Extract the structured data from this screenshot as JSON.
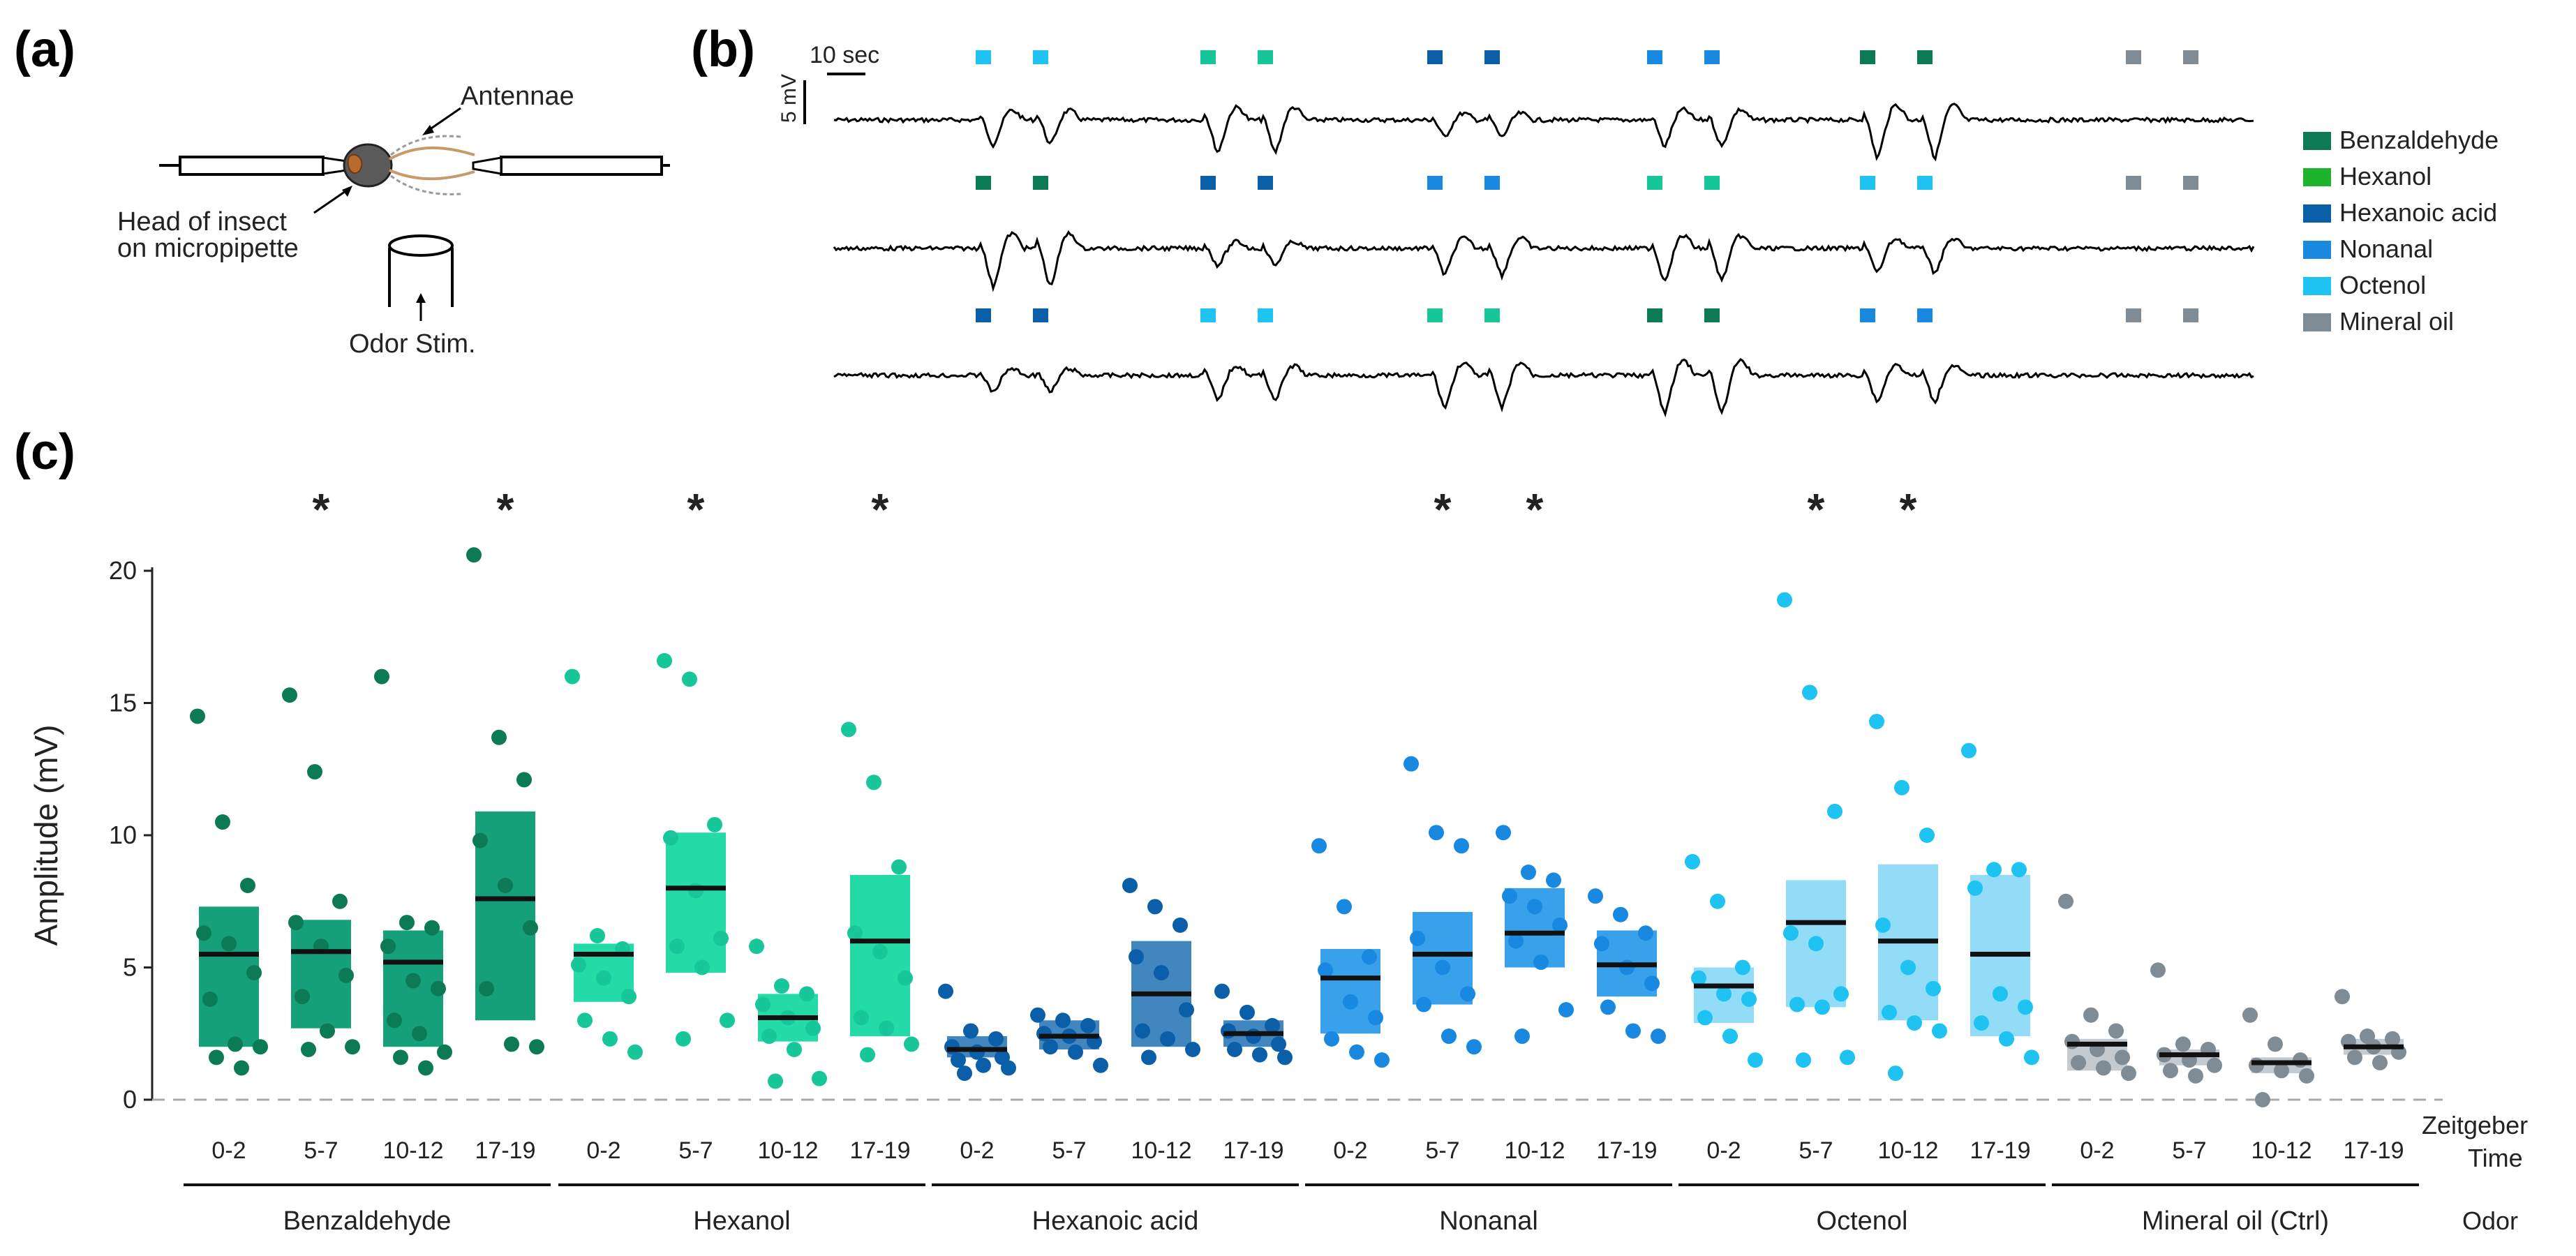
{
  "panels": {
    "a": {
      "letter": "(a)",
      "antennae_label": "Antennae",
      "head_label_line1": "Head of insect",
      "head_label_line2": "on micropipette",
      "odor_label": "Odor Stim."
    },
    "b": {
      "letter": "(b)",
      "time_scale": "10 sec",
      "voltage_scale": "5 mV",
      "legend": [
        {
          "name": "Benzaldehyde",
          "color": "#0b7a55"
        },
        {
          "name": "Hexanol",
          "color": "#1db32d"
        },
        {
          "name": "Hexanoic acid",
          "color": "#0b5fa8"
        },
        {
          "name": "Nonanal",
          "color": "#1888e0"
        },
        {
          "name": "Octenol",
          "color": "#1ec3f2"
        },
        {
          "name": "Mineral oil",
          "color": "#7f8c96"
        }
      ],
      "stimulus_rows": [
        [
          "Octenol",
          "Hexanol",
          "Hexanoic acid",
          "Nonanal",
          "Benzaldehyde",
          "Mineral oil"
        ],
        [
          "Benzaldehyde",
          "Hexanoic acid",
          "Nonanal",
          "Hexanol",
          "Octenol",
          "Mineral oil"
        ],
        [
          "Hexanoic acid",
          "Octenol",
          "Hexanol",
          "Benzaldehyde",
          "Nonanal",
          "Mineral oil"
        ]
      ],
      "stimulus_colors": {
        "Benzaldehyde": "#0b7a55",
        "Hexanol": "#17c79a",
        "Hexanoic acid": "#0b5fa8",
        "Nonanal": "#1888e0",
        "Octenol": "#1ec3f2",
        "Mineral oil": "#7f8c96"
      },
      "response_scale": {
        "Benzaldehyde": 1.0,
        "Hexanol": 0.85,
        "Hexanoic acid": 0.45,
        "Nonanal": 0.7,
        "Octenol": 0.65,
        "Mineral oil": 0.0
      }
    },
    "c": {
      "letter": "(c)"
    }
  },
  "chart_data": {
    "type": "scatter",
    "title": "",
    "ylabel": "Amplitude (mV)",
    "ylim": [
      0,
      20
    ],
    "yticks": [
      0,
      5,
      10,
      15,
      20
    ],
    "xlabel_time": "Zeitgeber",
    "xlabel_time_2": "Time",
    "xlabel_odor": "Odor",
    "time_labels": [
      "0-2",
      "5-7",
      "10-12",
      "17-19"
    ],
    "groups": [
      {
        "odor": "Benzaldehyde",
        "color": "#0b7a55",
        "bar_color": "#15a07a",
        "bar_opacity": 1.0,
        "significant": [
          false,
          true,
          false,
          true
        ],
        "medians": [
          5.5,
          5.6,
          5.2,
          7.6
        ],
        "boxes": [
          [
            2.0,
            7.3
          ],
          [
            2.7,
            6.8
          ],
          [
            2.0,
            6.4
          ],
          [
            3.0,
            10.9
          ]
        ],
        "points": [
          [
            14.5,
            10.5,
            8.1,
            6.3,
            5.9,
            4.8,
            3.8,
            2.1,
            2.0,
            1.6,
            1.2
          ],
          [
            15.3,
            12.4,
            7.5,
            6.7,
            5.8,
            4.7,
            3.9,
            2.6,
            2.0,
            1.9
          ],
          [
            16.0,
            6.7,
            6.5,
            5.8,
            4.5,
            4.2,
            3.0,
            2.5,
            1.8,
            1.6,
            1.2
          ],
          [
            20.6,
            13.7,
            12.1,
            9.8,
            8.1,
            6.5,
            4.2,
            2.1,
            2.0
          ]
        ]
      },
      {
        "odor": "Hexanol",
        "color": "#17c79a",
        "bar_color": "#24dba8",
        "bar_opacity": 1.0,
        "significant": [
          false,
          true,
          false,
          true
        ],
        "medians": [
          5.5,
          8.0,
          3.1,
          6.0
        ],
        "boxes": [
          [
            3.7,
            5.9
          ],
          [
            4.8,
            10.1
          ],
          [
            2.2,
            4.0
          ],
          [
            2.4,
            8.5
          ]
        ],
        "points": [
          [
            16.0,
            6.2,
            5.7,
            5.1,
            4.6,
            3.9,
            3.0,
            2.3,
            1.8
          ],
          [
            16.6,
            15.9,
            10.4,
            9.9,
            7.9,
            6.1,
            5.8,
            5.0,
            3.0,
            2.3
          ],
          [
            5.8,
            4.3,
            4.0,
            3.6,
            3.1,
            2.7,
            2.4,
            1.9,
            0.8,
            0.7
          ],
          [
            14.0,
            12.0,
            8.8,
            6.3,
            5.6,
            4.6,
            3.1,
            2.7,
            2.1,
            1.7
          ]
        ]
      },
      {
        "odor": "Hexanoic acid",
        "color": "#0b5fa8",
        "bar_color": "#2e79b8",
        "bar_opacity": 0.9,
        "significant": [
          false,
          false,
          false,
          false
        ],
        "medians": [
          1.9,
          2.4,
          4.0,
          2.5
        ],
        "boxes": [
          [
            1.6,
            2.4
          ],
          [
            1.9,
            3.0
          ],
          [
            2.0,
            6.0
          ],
          [
            2.0,
            3.0
          ]
        ],
        "points": [
          [
            4.1,
            2.6,
            2.3,
            2.0,
            1.8,
            1.6,
            1.5,
            1.3,
            1.2,
            1.0
          ],
          [
            3.2,
            3.0,
            2.8,
            2.5,
            2.4,
            2.2,
            2.0,
            1.8,
            1.3
          ],
          [
            8.1,
            7.3,
            6.6,
            5.4,
            4.8,
            3.4,
            2.6,
            2.3,
            1.9,
            1.6
          ],
          [
            4.1,
            3.3,
            2.8,
            2.6,
            2.4,
            2.1,
            1.9,
            1.7,
            1.6
          ]
        ]
      },
      {
        "odor": "Nonanal",
        "color": "#1888e0",
        "bar_color": "#2e9bea",
        "bar_opacity": 0.95,
        "significant": [
          false,
          true,
          true,
          false
        ],
        "medians": [
          4.6,
          5.5,
          6.3,
          5.1
        ],
        "boxes": [
          [
            2.5,
            5.7
          ],
          [
            3.6,
            7.1
          ],
          [
            5.0,
            8.0
          ],
          [
            3.9,
            6.4
          ]
        ],
        "points": [
          [
            9.6,
            7.3,
            5.4,
            4.9,
            3.7,
            3.1,
            2.3,
            1.8,
            1.5
          ],
          [
            12.7,
            10.1,
            9.6,
            6.1,
            5.0,
            4.0,
            3.6,
            2.4,
            2.0
          ],
          [
            10.1,
            8.6,
            8.3,
            7.7,
            7.3,
            6.6,
            6.0,
            5.2,
            3.4,
            2.4
          ],
          [
            7.7,
            7.0,
            6.3,
            5.9,
            5.0,
            4.4,
            3.5,
            2.6,
            2.4
          ]
        ]
      },
      {
        "odor": "Octenol",
        "color": "#1ec3f2",
        "bar_color": "#7fd6f7",
        "bar_opacity": 0.85,
        "significant": [
          false,
          true,
          true,
          false
        ],
        "medians": [
          4.3,
          6.7,
          6.0,
          5.5
        ],
        "boxes": [
          [
            2.9,
            5.0
          ],
          [
            3.5,
            8.3
          ],
          [
            3.0,
            8.9
          ],
          [
            2.4,
            8.5
          ]
        ],
        "points": [
          [
            9.0,
            7.5,
            5.0,
            4.6,
            4.0,
            3.8,
            3.1,
            2.4,
            1.5
          ],
          [
            18.9,
            15.4,
            10.9,
            6.3,
            5.9,
            4.0,
            3.6,
            3.5,
            1.6,
            1.5
          ],
          [
            14.3,
            11.8,
            10.0,
            6.6,
            5.0,
            4.2,
            3.3,
            2.9,
            2.6,
            1.0
          ],
          [
            13.2,
            8.7,
            8.7,
            8.0,
            4.0,
            3.5,
            2.9,
            2.3,
            1.6
          ]
        ]
      },
      {
        "odor": "Mineral oil (Ctrl)",
        "color": "#7f8c96",
        "bar_color": "#c3cbd1",
        "bar_opacity": 1.0,
        "significant": [
          false,
          false,
          false,
          false
        ],
        "medians": [
          2.1,
          1.7,
          1.4,
          2.0
        ],
        "boxes": [
          [
            1.1,
            2.3
          ],
          [
            1.3,
            1.9
          ],
          [
            1.0,
            1.6
          ],
          [
            1.7,
            2.3
          ]
        ],
        "points": [
          [
            7.5,
            3.2,
            2.6,
            2.2,
            1.9,
            1.6,
            1.4,
            1.2,
            1.0
          ],
          [
            4.9,
            2.1,
            1.9,
            1.7,
            1.5,
            1.3,
            1.1,
            0.9
          ],
          [
            3.2,
            2.1,
            1.5,
            1.3,
            1.1,
            0.9,
            0.0
          ],
          [
            3.9,
            2.4,
            2.3,
            2.2,
            2.0,
            1.8,
            1.6,
            1.4
          ]
        ]
      }
    ],
    "significance_marker": "*"
  }
}
